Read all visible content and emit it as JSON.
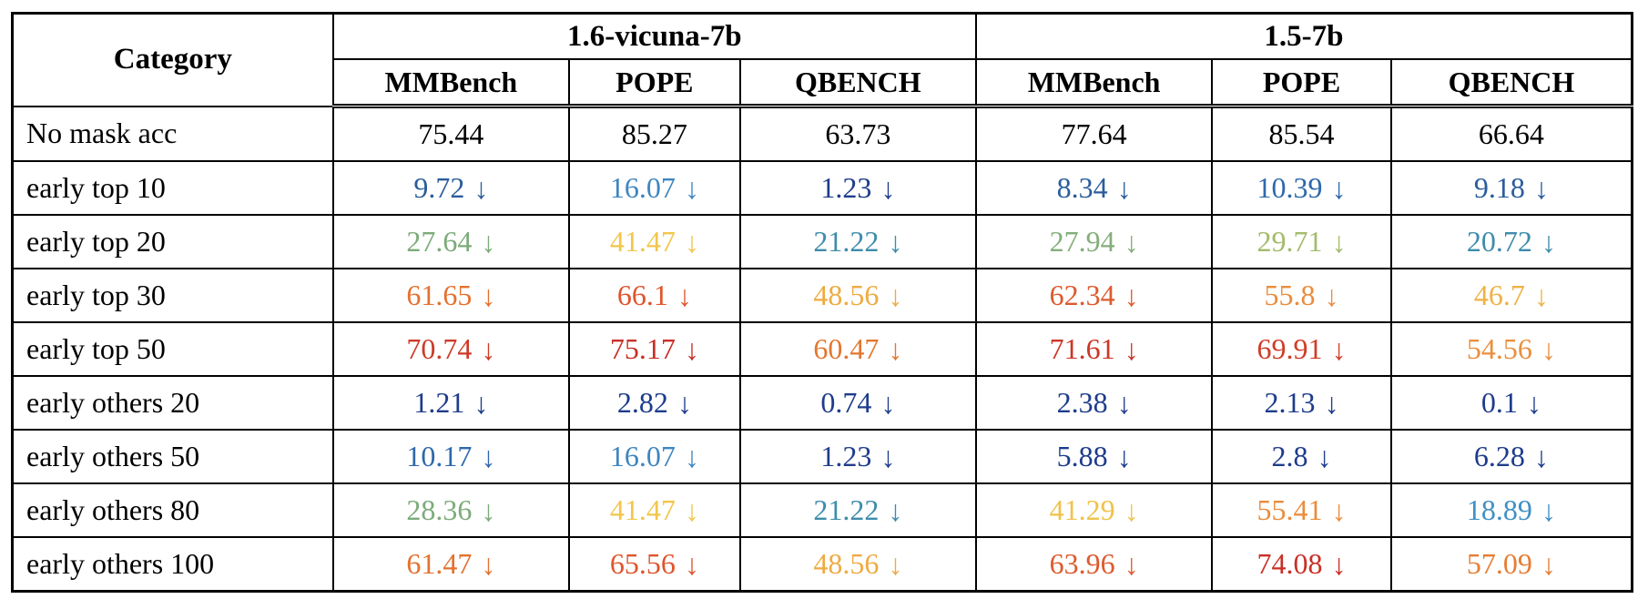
{
  "table": {
    "category_header": "Category",
    "arrow": "↓",
    "groups": [
      {
        "label": "1.6-vicuna-7b",
        "columns": [
          "MMBench",
          "POPE",
          "QBENCH"
        ]
      },
      {
        "label": "1.5-7b",
        "columns": [
          "MMBench",
          "POPE",
          "QBENCH"
        ]
      }
    ],
    "text_color": "#000000",
    "border_color": "#000000",
    "rows": [
      {
        "label": "No mask acc",
        "cells": [
          {
            "value": "75.44",
            "color": "#000000",
            "arrow": false
          },
          {
            "value": "85.27",
            "color": "#000000",
            "arrow": false
          },
          {
            "value": "63.73",
            "color": "#000000",
            "arrow": false
          },
          {
            "value": "77.64",
            "color": "#000000",
            "arrow": false
          },
          {
            "value": "85.54",
            "color": "#000000",
            "arrow": false
          },
          {
            "value": "66.64",
            "color": "#000000",
            "arrow": false
          }
        ]
      },
      {
        "label": "early top 10",
        "cells": [
          {
            "value": "9.72",
            "color": "#2b5d9c",
            "arrow": true
          },
          {
            "value": "16.07",
            "color": "#3e86c0",
            "arrow": true
          },
          {
            "value": "1.23",
            "color": "#1e3c8c",
            "arrow": true
          },
          {
            "value": "8.34",
            "color": "#2b5d9c",
            "arrow": true
          },
          {
            "value": "10.39",
            "color": "#2e68ab",
            "arrow": true
          },
          {
            "value": "9.18",
            "color": "#2b5d9c",
            "arrow": true
          }
        ]
      },
      {
        "label": "early top 20",
        "cells": [
          {
            "value": "27.64",
            "color": "#7cab79",
            "arrow": true
          },
          {
            "value": "41.47",
            "color": "#f2c64b",
            "arrow": true
          },
          {
            "value": "21.22",
            "color": "#3e8cab",
            "arrow": true
          },
          {
            "value": "27.94",
            "color": "#84ae7b",
            "arrow": true
          },
          {
            "value": "29.71",
            "color": "#a3bb6b",
            "arrow": true
          },
          {
            "value": "20.72",
            "color": "#3e8cab",
            "arrow": true
          }
        ]
      },
      {
        "label": "early top 30",
        "cells": [
          {
            "value": "61.65",
            "color": "#e4712f",
            "arrow": true
          },
          {
            "value": "66.1",
            "color": "#df552d",
            "arrow": true
          },
          {
            "value": "48.56",
            "color": "#eeab42",
            "arrow": true
          },
          {
            "value": "62.34",
            "color": "#dd5a2e",
            "arrow": true
          },
          {
            "value": "55.8",
            "color": "#ea8c3c",
            "arrow": true
          },
          {
            "value": "46.7",
            "color": "#efb245",
            "arrow": true
          }
        ]
      },
      {
        "label": "early top 50",
        "cells": [
          {
            "value": "70.74",
            "color": "#cd3a28",
            "arrow": true
          },
          {
            "value": "75.17",
            "color": "#c92f26",
            "arrow": true
          },
          {
            "value": "60.47",
            "color": "#e4762f",
            "arrow": true
          },
          {
            "value": "71.61",
            "color": "#cb3627",
            "arrow": true
          },
          {
            "value": "69.91",
            "color": "#ce3d28",
            "arrow": true
          },
          {
            "value": "54.56",
            "color": "#ea8f3e",
            "arrow": true
          }
        ]
      },
      {
        "label": "early others 20",
        "cells": [
          {
            "value": "1.21",
            "color": "#1e3c8c",
            "arrow": true
          },
          {
            "value": "2.82",
            "color": "#1e3c8c",
            "arrow": true
          },
          {
            "value": "0.74",
            "color": "#1e3c8c",
            "arrow": true
          },
          {
            "value": "2.38",
            "color": "#1e3c8c",
            "arrow": true
          },
          {
            "value": "2.13",
            "color": "#1e3c8c",
            "arrow": true
          },
          {
            "value": "0.1",
            "color": "#1e3c8c",
            "arrow": true
          }
        ]
      },
      {
        "label": "early others 50",
        "cells": [
          {
            "value": "10.17",
            "color": "#2e68ab",
            "arrow": true
          },
          {
            "value": "16.07",
            "color": "#3e86c0",
            "arrow": true
          },
          {
            "value": "1.23",
            "color": "#1e3c8c",
            "arrow": true
          },
          {
            "value": "5.88",
            "color": "#1e3c8c",
            "arrow": true
          },
          {
            "value": "2.8",
            "color": "#1e3c8c",
            "arrow": true
          },
          {
            "value": "6.28",
            "color": "#1e3c8c",
            "arrow": true
          }
        ]
      },
      {
        "label": "early others 80",
        "cells": [
          {
            "value": "28.36",
            "color": "#7cab79",
            "arrow": true
          },
          {
            "value": "41.47",
            "color": "#f2c64b",
            "arrow": true
          },
          {
            "value": "21.22",
            "color": "#3e8cab",
            "arrow": true
          },
          {
            "value": "41.29",
            "color": "#f0c24a",
            "arrow": true
          },
          {
            "value": "55.41",
            "color": "#ea8c3c",
            "arrow": true
          },
          {
            "value": "18.89",
            "color": "#4090c4",
            "arrow": true
          }
        ]
      },
      {
        "label": "early others 100",
        "cells": [
          {
            "value": "61.47",
            "color": "#e4712f",
            "arrow": true
          },
          {
            "value": "65.56",
            "color": "#df552d",
            "arrow": true
          },
          {
            "value": "48.56",
            "color": "#eeab42",
            "arrow": true
          },
          {
            "value": "63.96",
            "color": "#dd5a2e",
            "arrow": true
          },
          {
            "value": "74.08",
            "color": "#c92f26",
            "arrow": true
          },
          {
            "value": "57.09",
            "color": "#e67d33",
            "arrow": true
          }
        ]
      }
    ]
  }
}
